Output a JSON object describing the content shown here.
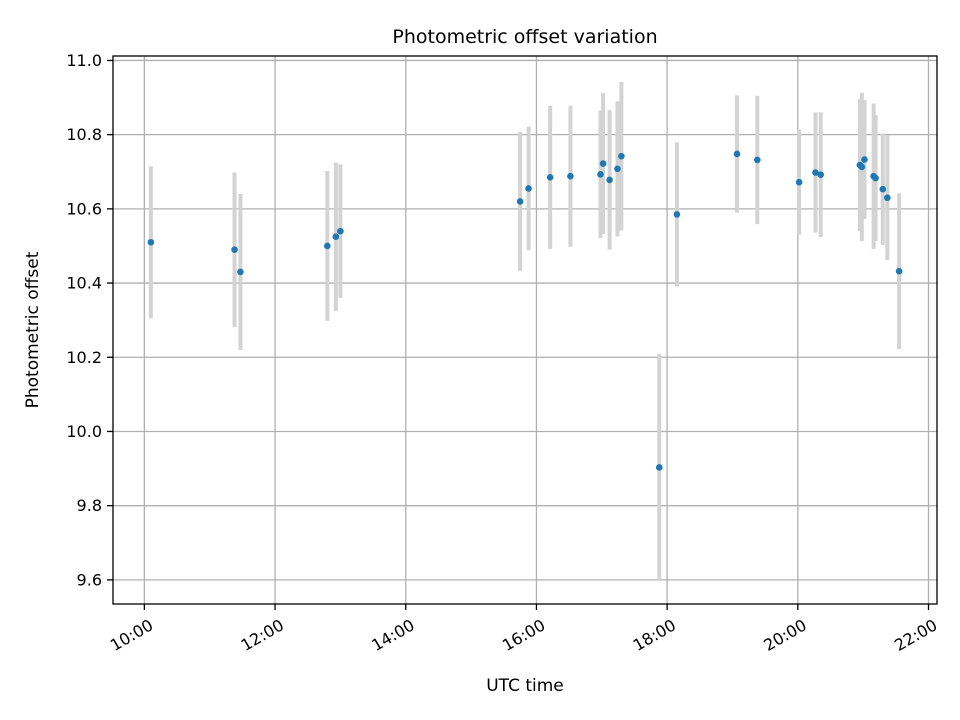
{
  "chart_data": {
    "type": "scatter",
    "title": "Photometric offset variation",
    "xlabel": "UTC time",
    "ylabel": "Photometric offset",
    "x_unit": "hours",
    "xlim": [
      9.52,
      22.13
    ],
    "ylim": [
      9.535,
      11.012
    ],
    "x_ticks": [
      {
        "value": 10,
        "label": "10:00"
      },
      {
        "value": 12,
        "label": "12:00"
      },
      {
        "value": 14,
        "label": "14:00"
      },
      {
        "value": 16,
        "label": "16:00"
      },
      {
        "value": 18,
        "label": "18:00"
      },
      {
        "value": 20,
        "label": "20:00"
      },
      {
        "value": 22,
        "label": "22:00"
      }
    ],
    "y_ticks": [
      {
        "value": 9.6,
        "label": "9.6"
      },
      {
        "value": 9.8,
        "label": "9.8"
      },
      {
        "value": 10.0,
        "label": "10.0"
      },
      {
        "value": 10.2,
        "label": "10.2"
      },
      {
        "value": 10.4,
        "label": "10.4"
      },
      {
        "value": 10.6,
        "label": "10.6"
      },
      {
        "value": 10.8,
        "label": "10.8"
      },
      {
        "value": 11.0,
        "label": "11.0"
      }
    ],
    "grid": true,
    "marker_color": "#1f77b4",
    "errorbar_color": "#d3d3d3",
    "series": [
      {
        "points": [
          {
            "x": 10.1,
            "y": 10.51,
            "err": 0.205
          },
          {
            "x": 11.38,
            "y": 10.49,
            "err": 0.208
          },
          {
            "x": 11.47,
            "y": 10.43,
            "err": 0.21
          },
          {
            "x": 12.8,
            "y": 10.5,
            "err": 0.202
          },
          {
            "x": 12.93,
            "y": 10.525,
            "err": 0.2
          },
          {
            "x": 13.0,
            "y": 10.54,
            "err": 0.18
          },
          {
            "x": 15.75,
            "y": 10.62,
            "err": 0.187
          },
          {
            "x": 15.88,
            "y": 10.655,
            "err": 0.167
          },
          {
            "x": 16.21,
            "y": 10.685,
            "err": 0.193
          },
          {
            "x": 16.52,
            "y": 10.688,
            "err": 0.19
          },
          {
            "x": 16.98,
            "y": 10.693,
            "err": 0.172
          },
          {
            "x": 17.02,
            "y": 10.722,
            "err": 0.19
          },
          {
            "x": 17.12,
            "y": 10.678,
            "err": 0.188
          },
          {
            "x": 17.24,
            "y": 10.708,
            "err": 0.182
          },
          {
            "x": 17.3,
            "y": 10.742,
            "err": 0.2
          },
          {
            "x": 17.88,
            "y": 9.903,
            "err": 0.306
          },
          {
            "x": 18.15,
            "y": 10.585,
            "err": 0.195
          },
          {
            "x": 19.07,
            "y": 10.748,
            "err": 0.158
          },
          {
            "x": 19.38,
            "y": 10.732,
            "err": 0.173
          },
          {
            "x": 20.02,
            "y": 10.672,
            "err": 0.142
          },
          {
            "x": 20.27,
            "y": 10.698,
            "err": 0.162
          },
          {
            "x": 20.35,
            "y": 10.692,
            "err": 0.168
          },
          {
            "x": 20.95,
            "y": 10.718,
            "err": 0.178
          },
          {
            "x": 20.98,
            "y": 10.713,
            "err": 0.2
          },
          {
            "x": 21.02,
            "y": 10.733,
            "err": 0.16
          },
          {
            "x": 21.16,
            "y": 10.688,
            "err": 0.196
          },
          {
            "x": 21.19,
            "y": 10.683,
            "err": 0.17
          },
          {
            "x": 21.3,
            "y": 10.653,
            "err": 0.15
          },
          {
            "x": 21.37,
            "y": 10.63,
            "err": 0.168
          },
          {
            "x": 21.55,
            "y": 10.432,
            "err": 0.21
          }
        ]
      }
    ]
  }
}
